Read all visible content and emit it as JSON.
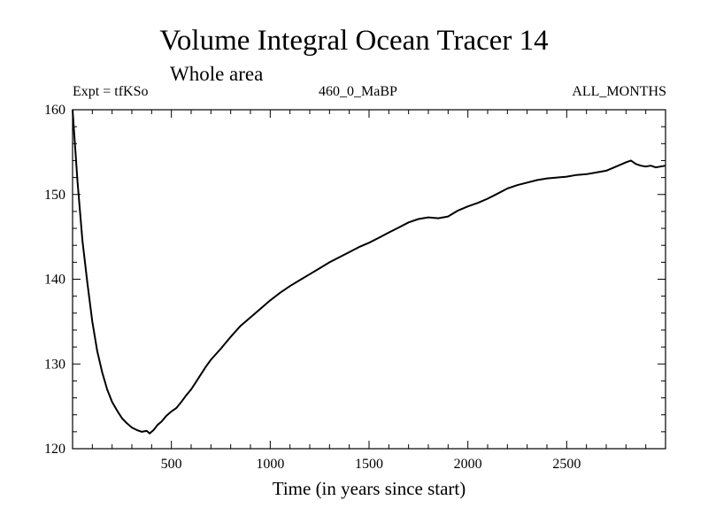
{
  "header": {
    "title": "Volume Integral Ocean Tracer 14",
    "subtitle": "Whole area",
    "expt": "Expt = tfKSo",
    "period": "460_0_MaBP",
    "season": "ALL_MONTHS"
  },
  "chart_data": {
    "type": "line",
    "title": "Volume Integral Ocean Tracer 14",
    "subtitle": "Whole area",
    "xlabel": "Time (in years since start)",
    "ylabel": "",
    "xlim": [
      0,
      3000
    ],
    "ylim": [
      120,
      160
    ],
    "xticks": [
      500,
      1000,
      1500,
      2000,
      2500
    ],
    "yticks": [
      120,
      130,
      140,
      150,
      160
    ],
    "grid": false,
    "series": [
      {
        "name": "Tracer 14",
        "x": [
          0,
          25,
          50,
          75,
          100,
          125,
          150,
          175,
          200,
          225,
          250,
          275,
          300,
          325,
          350,
          375,
          390,
          410,
          430,
          450,
          475,
          500,
          525,
          550,
          575,
          600,
          625,
          650,
          675,
          700,
          750,
          800,
          850,
          900,
          950,
          1000,
          1050,
          1100,
          1150,
          1200,
          1250,
          1300,
          1350,
          1400,
          1450,
          1500,
          1550,
          1600,
          1650,
          1700,
          1750,
          1800,
          1850,
          1900,
          1950,
          2000,
          2050,
          2100,
          2150,
          2200,
          2250,
          2300,
          2350,
          2400,
          2450,
          2500,
          2550,
          2600,
          2650,
          2700,
          2750,
          2800,
          2825,
          2850,
          2875,
          2900,
          2925,
          2950,
          2975,
          3000
        ],
        "values": [
          160.0,
          151.5,
          144.5,
          139.5,
          135.0,
          131.5,
          129.0,
          127.0,
          125.5,
          124.5,
          123.6,
          123.0,
          122.5,
          122.2,
          122.0,
          122.1,
          121.8,
          122.2,
          122.8,
          123.2,
          123.9,
          124.4,
          124.8,
          125.5,
          126.3,
          127.0,
          127.9,
          128.8,
          129.7,
          130.5,
          131.8,
          133.2,
          134.5,
          135.5,
          136.5,
          137.5,
          138.4,
          139.2,
          139.9,
          140.6,
          141.3,
          142.0,
          142.6,
          143.2,
          143.8,
          144.3,
          144.9,
          145.5,
          146.1,
          146.7,
          147.1,
          147.3,
          147.2,
          147.4,
          148.1,
          148.6,
          149.0,
          149.5,
          150.1,
          150.7,
          151.1,
          151.4,
          151.7,
          151.9,
          152.0,
          152.1,
          152.3,
          152.4,
          152.6,
          152.8,
          153.3,
          153.8,
          154.0,
          153.6,
          153.4,
          153.3,
          153.4,
          153.2,
          153.3,
          153.4
        ]
      }
    ]
  }
}
